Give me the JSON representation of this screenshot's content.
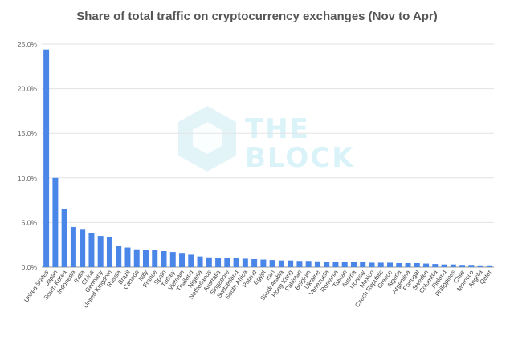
{
  "chart_data": {
    "type": "bar",
    "title": "Share of total traffic on cryptocurrency exchanges (Nov to Apr)",
    "xlabel": "",
    "ylabel": "",
    "ylim": [
      0,
      25
    ],
    "yticks": [
      "0.0%",
      "5.0%",
      "10.0%",
      "15.0%",
      "20.0%",
      "25.0%"
    ],
    "grid": true,
    "legend": "none",
    "bar_color": "#4a86e8",
    "categories": [
      "United States",
      "Japan",
      "South Korea",
      "Indonesia",
      "India",
      "China",
      "Germany",
      "United Kingdom",
      "Russia",
      "Brazil",
      "Canada",
      "Italy",
      "France",
      "Spain",
      "Turkey",
      "Vietnam",
      "Thailand",
      "Nigeria",
      "Netherlands",
      "Australia",
      "Singapore",
      "Switzerland",
      "South Africa",
      "Poland",
      "Egypt",
      "Iran",
      "Saudi Arabia",
      "Hong Kong",
      "Pakistan",
      "Belgium",
      "Ukraine",
      "Venezuela",
      "Romania",
      "Taiwan",
      "Austria",
      "Norway",
      "Mexico",
      "Czech Republic",
      "Greece",
      "Algeria",
      "Argentina",
      "Portugal",
      "Sweden",
      "Colombia",
      "Finland",
      "Philippines",
      "Chile",
      "Morocco",
      "Angola",
      "Qatar"
    ],
    "values": [
      24.4,
      10.0,
      6.5,
      4.5,
      4.2,
      3.8,
      3.5,
      3.4,
      2.4,
      2.2,
      2.0,
      1.9,
      1.9,
      1.8,
      1.7,
      1.6,
      1.4,
      1.2,
      1.1,
      1.05,
      1.0,
      1.0,
      0.95,
      0.9,
      0.85,
      0.8,
      0.75,
      0.75,
      0.7,
      0.7,
      0.65,
      0.6,
      0.6,
      0.6,
      0.55,
      0.55,
      0.5,
      0.5,
      0.5,
      0.45,
      0.45,
      0.45,
      0.4,
      0.35,
      0.3,
      0.3,
      0.25,
      0.25,
      0.2,
      0.2
    ]
  },
  "watermark": {
    "line1": "THE",
    "line2": "BLOCK",
    "color": "#d9f3f8"
  }
}
